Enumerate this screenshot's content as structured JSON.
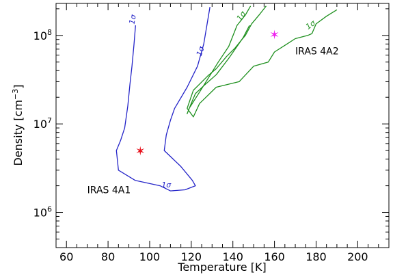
{
  "chart_data": {
    "type": "line",
    "xlabel": "Temperature [K]",
    "ylabel": "Density [cm⁻³]",
    "ylabel_parts": {
      "pre": "Density [cm",
      "sup": "−3",
      "post": "]"
    },
    "xlim": [
      55,
      215
    ],
    "ylim": [
      400000,
      230000000
    ],
    "yscale": "log",
    "grid": false,
    "x_ticks": [
      60,
      80,
      100,
      120,
      140,
      160,
      180,
      200
    ],
    "x_tick_labels": [
      "60",
      "80",
      "100",
      "120",
      "140",
      "160",
      "180",
      "200"
    ],
    "y_ticks": [
      1000000,
      10000000,
      100000000
    ],
    "y_tick_labels": [
      {
        "base": "10",
        "exp": "6"
      },
      {
        "base": "10",
        "exp": "7"
      },
      {
        "base": "10",
        "exp": "8"
      }
    ],
    "series": [
      {
        "color": "#2323c8",
        "contour_label": "1σ",
        "points": [
          [
            93.2,
            130000000
          ],
          [
            92.5,
            80000000
          ],
          [
            91.5,
            45000000
          ],
          [
            90.5,
            28000000
          ],
          [
            89.5,
            16000000
          ],
          [
            88,
            9000000
          ],
          [
            86,
            6500000
          ],
          [
            84,
            5000000
          ],
          [
            85,
            3000000
          ],
          [
            93,
            2300000
          ],
          [
            105,
            2000000
          ],
          [
            110,
            1750000
          ],
          [
            117,
            1800000
          ],
          [
            122,
            2000000
          ],
          [
            120.5,
            2300000
          ],
          [
            115,
            3300000
          ],
          [
            107,
            5000000
          ],
          [
            108,
            7500000
          ],
          [
            110,
            11000000
          ],
          [
            112,
            15000000
          ],
          [
            118,
            26000000
          ],
          [
            123,
            45000000
          ],
          [
            126,
            80000000
          ],
          [
            129,
            210000000
          ]
        ]
      },
      {
        "color": "#1d8f1d",
        "contour_label": "1σ",
        "points": [
          [
            148.5,
            215000000
          ],
          [
            146,
            170000000
          ],
          [
            142,
            130000000
          ],
          [
            138,
            75000000
          ],
          [
            133,
            50000000
          ],
          [
            125,
            25000000
          ],
          [
            119,
            15000000
          ],
          [
            118,
            13000000
          ],
          [
            120,
            17000000
          ],
          [
            122,
            22000000
          ],
          [
            126,
            27000000
          ],
          [
            132,
            36000000
          ],
          [
            138,
            55000000
          ],
          [
            145,
            95000000
          ],
          [
            148,
            130000000
          ]
        ]
      },
      {
        "color": "#1d8f1d",
        "contour_label": "1σ",
        "points": [
          [
            190,
            195000000
          ],
          [
            185,
            165000000
          ],
          [
            180,
            135000000
          ],
          [
            178,
            105000000
          ],
          [
            176,
            100000000
          ],
          [
            170,
            92000000
          ],
          [
            166,
            80000000
          ],
          [
            160,
            65000000
          ],
          [
            157,
            50000000
          ],
          [
            150,
            45000000
          ],
          [
            143,
            30000000
          ],
          [
            132,
            26000000
          ],
          [
            124,
            17000000
          ],
          [
            121,
            12000000
          ],
          [
            118,
            15000000
          ],
          [
            121,
            24000000
          ],
          [
            128,
            35000000
          ],
          [
            132,
            42000000
          ],
          [
            137,
            58000000
          ],
          [
            141,
            72000000
          ],
          [
            144,
            88000000
          ],
          [
            146,
            100000000
          ],
          [
            149,
            135000000
          ],
          [
            153,
            175000000
          ],
          [
            156,
            215000000
          ]
        ]
      }
    ],
    "markers": [
      {
        "x": 95.5,
        "y": 5000000,
        "symbol": "✶",
        "color": "#e8141e"
      },
      {
        "x": 160,
        "y": 103000000,
        "symbol": "✶",
        "color": "#ee22ee"
      }
    ],
    "annotations": [
      {
        "text": "IRAS 4A1",
        "x": 70,
        "y": 1800000
      },
      {
        "text": "IRAS 4A2",
        "x": 170,
        "y": 67000000
      }
    ],
    "contour_labels": [
      {
        "text": "1σ",
        "series": 0,
        "x": 93,
        "y": 150000000,
        "angle": -80
      },
      {
        "text": "1σ",
        "series": 0,
        "x": 108,
        "y": 1920000,
        "angle": 0
      },
      {
        "text": "1σ",
        "series": 0,
        "x": 125.5,
        "y": 65000000,
        "angle": -72
      },
      {
        "text": "1σ",
        "series": 1,
        "x": 145,
        "y": 160000000,
        "angle": -55
      },
      {
        "text": "1σ",
        "series": 2,
        "x": 178,
        "y": 125000000,
        "angle": -35
      }
    ]
  }
}
